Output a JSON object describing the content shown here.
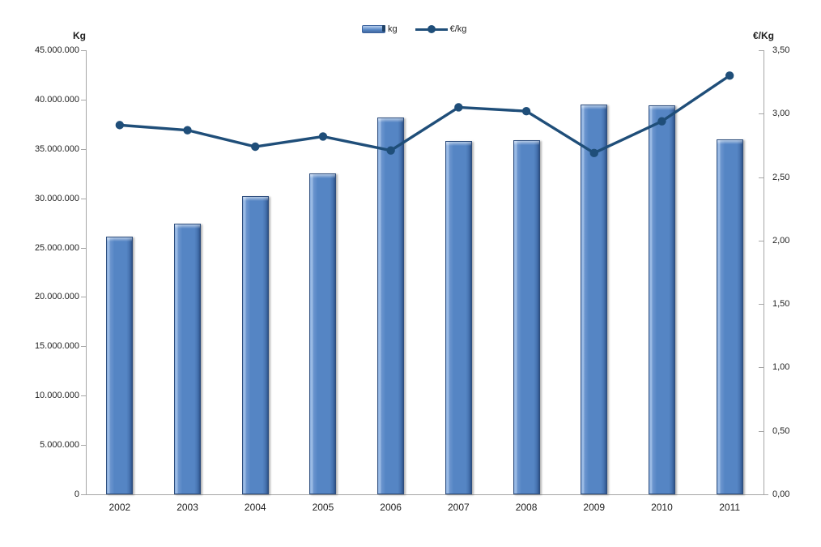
{
  "chart_data": {
    "type": "bar",
    "combo": "bar+line, dual axis",
    "title": "",
    "categories": [
      "2002",
      "2003",
      "2004",
      "2005",
      "2006",
      "2007",
      "2008",
      "2009",
      "2010",
      "2011"
    ],
    "series": [
      {
        "name": "kg",
        "type": "bar",
        "axis": "left",
        "color": "#5585C4",
        "values": [
          26100000,
          27400000,
          30200000,
          32500000,
          38200000,
          35800000,
          35900000,
          39500000,
          39400000,
          36000000
        ]
      },
      {
        "name": "€/kg",
        "type": "line",
        "axis": "right",
        "color": "#1F4E79",
        "values": [
          2.91,
          2.87,
          2.74,
          2.82,
          2.71,
          3.05,
          3.02,
          2.69,
          2.94,
          3.3
        ]
      }
    ],
    "left_axis": {
      "title": "Kg",
      "min": 0,
      "max": 45000000,
      "step": 5000000,
      "tick_labels": [
        "0",
        "5.000.000",
        "10.000.000",
        "15.000.000",
        "20.000.000",
        "25.000.000",
        "30.000.000",
        "35.000.000",
        "40.000.000",
        "45.000.000"
      ]
    },
    "right_axis": {
      "title": "€/Kg",
      "min": 0,
      "max": 3.5,
      "step": 0.5,
      "tick_labels": [
        "0,00",
        "0,50",
        "1,00",
        "1,50",
        "2,00",
        "2,50",
        "3,00",
        "3,50"
      ]
    },
    "legend": {
      "position": "top-center",
      "items": [
        {
          "label": "kg",
          "marker": "bar-swatch"
        },
        {
          "label": "€/kg",
          "marker": "line-swatch"
        }
      ]
    },
    "grid": false
  },
  "colors": {
    "bar": "#5585C4",
    "bar_border": "#2E4E7E",
    "line": "#1F4E79",
    "axis": "#A6A6A6",
    "text": "#1F1F1F"
  }
}
